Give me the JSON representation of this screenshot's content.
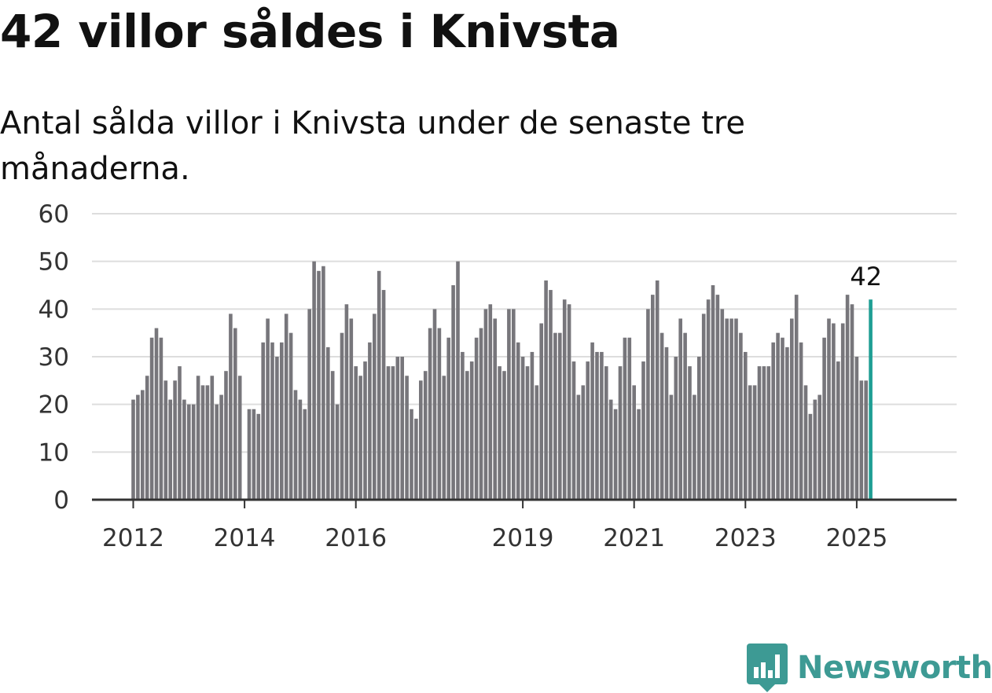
{
  "title": "42 villor såldes i Knivsta",
  "subtitle": "Antal sålda villor i Knivsta under de senaste tre månaderna.",
  "brand": {
    "name": "Newsworthy"
  },
  "colors": {
    "bar": "#77767b",
    "highlight": "#1f9e94",
    "grid": "#dddddd",
    "axis": "#333333",
    "brand": "#3d9a94"
  },
  "chart_data": {
    "type": "bar",
    "title": "42 villor såldes i Knivsta",
    "subtitle": "Antal sålda villor i Knivsta under de senaste tre månaderna.",
    "xlabel": "",
    "ylabel": "",
    "ylim": [
      0,
      60
    ],
    "yticks": [
      0,
      10,
      20,
      30,
      40,
      50,
      60
    ],
    "xticks": [
      "2012",
      "2014",
      "2016",
      "2019",
      "2021",
      "2023",
      "2025"
    ],
    "grid": true,
    "x_start": "2012-01",
    "interval": "month",
    "values": [
      21,
      22,
      23,
      26,
      34,
      36,
      34,
      25,
      21,
      25,
      28,
      21,
      20,
      20,
      26,
      24,
      24,
      26,
      20,
      22,
      27,
      39,
      36,
      26,
      0,
      19,
      19,
      18,
      33,
      38,
      33,
      30,
      33,
      39,
      35,
      23,
      21,
      19,
      40,
      50,
      48,
      49,
      32,
      27,
      20,
      35,
      41,
      38,
      28,
      26,
      29,
      33,
      39,
      48,
      44,
      28,
      28,
      30,
      30,
      26,
      19,
      17,
      25,
      27,
      36,
      40,
      36,
      26,
      34,
      45,
      50,
      31,
      27,
      29,
      34,
      36,
      40,
      41,
      38,
      28,
      27,
      40,
      40,
      33,
      30,
      28,
      31,
      24,
      37,
      46,
      44,
      35,
      35,
      42,
      41,
      29,
      22,
      24,
      29,
      33,
      31,
      31,
      28,
      21,
      19,
      28,
      34,
      34,
      24,
      19,
      29,
      40,
      43,
      46,
      35,
      32,
      22,
      30,
      38,
      35,
      28,
      22,
      30,
      39,
      42,
      45,
      43,
      40,
      38,
      38,
      38,
      35,
      31,
      24,
      24,
      28,
      28,
      28,
      33,
      35,
      34,
      32,
      38,
      43,
      33,
      24,
      18,
      21,
      22,
      34,
      38,
      37,
      29,
      37,
      43,
      41,
      30,
      25,
      25,
      42
    ],
    "annotations": [
      {
        "x": "2025-03",
        "value": 42,
        "label": "42"
      }
    ]
  }
}
